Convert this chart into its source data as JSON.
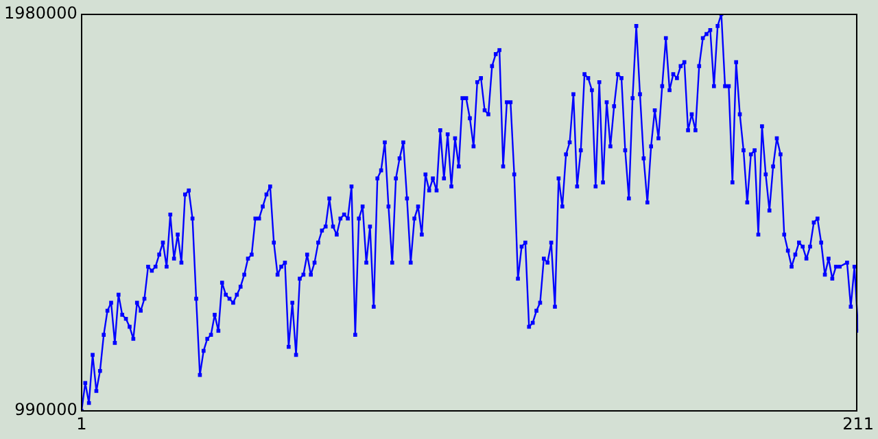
{
  "chart_data": {
    "type": "line",
    "color": "#0000ff",
    "marker": "square",
    "grid": false,
    "xlim": [
      1,
      211
    ],
    "xticks": [
      1,
      211
    ],
    "ylim": [
      990000,
      1980000
    ],
    "yticks": [
      990000,
      1980000
    ],
    "x": [
      1,
      2,
      3,
      4,
      5,
      6,
      7,
      8,
      9,
      10,
      11,
      12,
      13,
      14,
      15,
      16,
      17,
      18,
      19,
      20,
      21,
      22,
      23,
      24,
      25,
      26,
      27,
      28,
      29,
      30,
      31,
      32,
      33,
      34,
      35,
      36,
      37,
      38,
      39,
      40,
      41,
      42,
      43,
      44,
      45,
      46,
      47,
      48,
      49,
      50,
      51,
      52,
      53,
      54,
      55,
      56,
      57,
      58,
      59,
      60,
      61,
      62,
      63,
      64,
      65,
      66,
      67,
      68,
      69,
      70,
      71,
      72,
      73,
      74,
      75,
      76,
      77,
      78,
      79,
      80,
      81,
      82,
      83,
      84,
      85,
      86,
      87,
      88,
      89,
      90,
      91,
      92,
      93,
      94,
      95,
      96,
      97,
      98,
      99,
      100,
      101,
      102,
      103,
      104,
      105,
      106,
      107,
      108,
      109,
      110,
      111,
      112,
      113,
      114,
      115,
      116,
      117,
      118,
      119,
      120,
      121,
      122,
      123,
      124,
      125,
      126,
      127,
      128,
      129,
      130,
      131,
      132,
      133,
      134,
      135,
      136,
      137,
      138,
      139,
      140,
      141,
      142,
      143,
      144,
      145,
      146,
      147,
      148,
      149,
      150,
      151,
      152,
      153,
      154,
      155,
      156,
      157,
      158,
      159,
      160,
      161,
      162,
      163,
      164,
      165,
      166,
      167,
      168,
      169,
      170,
      171,
      172,
      173,
      174,
      175,
      176,
      177,
      178,
      179,
      180,
      181,
      182,
      183,
      184,
      185,
      186,
      187,
      188,
      189,
      190,
      191,
      192,
      193,
      194,
      195,
      196,
      197,
      198,
      199,
      200,
      201,
      202,
      203,
      204,
      205,
      206,
      208,
      209,
      210,
      211
    ],
    "values": [
      990000,
      1060000,
      1010000,
      1130000,
      1040000,
      1090000,
      1180000,
      1240000,
      1260000,
      1160000,
      1280000,
      1230000,
      1220000,
      1200000,
      1170000,
      1260000,
      1240000,
      1270000,
      1350000,
      1340000,
      1350000,
      1380000,
      1410000,
      1350000,
      1480000,
      1370000,
      1430000,
      1360000,
      1530000,
      1540000,
      1470000,
      1270000,
      1080000,
      1140000,
      1170000,
      1180000,
      1230000,
      1190000,
      1310000,
      1280000,
      1270000,
      1260000,
      1280000,
      1300000,
      1330000,
      1370000,
      1380000,
      1470000,
      1470000,
      1500000,
      1530000,
      1550000,
      1410000,
      1330000,
      1350000,
      1360000,
      1150000,
      1260000,
      1130000,
      1320000,
      1330000,
      1380000,
      1330000,
      1360000,
      1410000,
      1440000,
      1450000,
      1520000,
      1450000,
      1430000,
      1470000,
      1480000,
      1470000,
      1550000,
      1180000,
      1470000,
      1500000,
      1360000,
      1450000,
      1250000,
      1570000,
      1590000,
      1660000,
      1500000,
      1360000,
      1570000,
      1620000,
      1660000,
      1520000,
      1360000,
      1470000,
      1500000,
      1430000,
      1580000,
      1540000,
      1570000,
      1540000,
      1690000,
      1570000,
      1680000,
      1550000,
      1670000,
      1600000,
      1770000,
      1770000,
      1720000,
      1650000,
      1810000,
      1820000,
      1740000,
      1730000,
      1850000,
      1880000,
      1890000,
      1600000,
      1760000,
      1760000,
      1580000,
      1320000,
      1400000,
      1410000,
      1200000,
      1210000,
      1240000,
      1260000,
      1370000,
      1360000,
      1410000,
      1250000,
      1570000,
      1500000,
      1630000,
      1660000,
      1780000,
      1550000,
      1640000,
      1830000,
      1820000,
      1790000,
      1550000,
      1810000,
      1560000,
      1760000,
      1650000,
      1750000,
      1830000,
      1820000,
      1640000,
      1520000,
      1770000,
      1950000,
      1780000,
      1620000,
      1510000,
      1650000,
      1740000,
      1670000,
      1800000,
      1920000,
      1790000,
      1830000,
      1820000,
      1850000,
      1860000,
      1690000,
      1730000,
      1690000,
      1850000,
      1920000,
      1930000,
      1940000,
      1800000,
      1950000,
      1980000,
      1800000,
      1800000,
      1560000,
      1860000,
      1730000,
      1640000,
      1510000,
      1630000,
      1640000,
      1430000,
      1700000,
      1580000,
      1490000,
      1600000,
      1670000,
      1630000,
      1430000,
      1390000,
      1350000,
      1380000,
      1410000,
      1400000,
      1370000,
      1400000,
      1460000,
      1470000,
      1410000,
      1330000,
      1370000,
      1320000,
      1350000,
      1350000,
      1360000,
      1250000,
      1350000,
      1190000
    ]
  }
}
